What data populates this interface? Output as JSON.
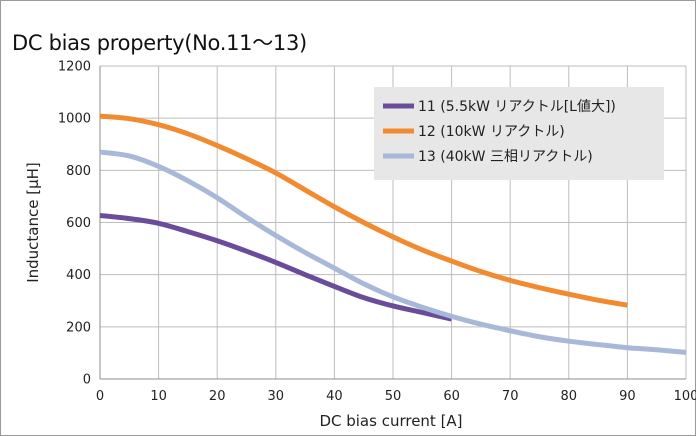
{
  "chart_data": {
    "type": "line",
    "title": "DC bias property(No.11～13)",
    "xlabel": "DC bias current [A]",
    "ylabel": "Inductance [μH]",
    "xlim": [
      0,
      100
    ],
    "ylim": [
      0,
      1200
    ],
    "xticks": [
      "0",
      "10",
      "20",
      "30",
      "40",
      "50",
      "60",
      "70",
      "80",
      "90",
      "100"
    ],
    "yticks": [
      "0",
      "200",
      "400",
      "600",
      "800",
      "1000",
      "1200"
    ],
    "grid": true,
    "legend_position": "top-right",
    "series": [
      {
        "name": "11 (5.5kW リアクトル[L値大])",
        "color": "#6b4c9a",
        "x": [
          0,
          5,
          10,
          15,
          20,
          25,
          30,
          35,
          40,
          45,
          50,
          55,
          60
        ],
        "y": [
          627,
          615,
          597,
          565,
          530,
          490,
          447,
          400,
          355,
          312,
          280,
          255,
          230
        ]
      },
      {
        "name": "12 (10kW リアクトル)",
        "color": "#f28a30",
        "x": [
          0,
          5,
          10,
          15,
          20,
          25,
          30,
          35,
          40,
          45,
          50,
          55,
          60,
          65,
          70,
          75,
          80,
          85,
          90
        ],
        "y": [
          1008,
          998,
          975,
          940,
          895,
          845,
          790,
          725,
          660,
          600,
          545,
          495,
          452,
          412,
          378,
          350,
          325,
          302,
          283
        ]
      },
      {
        "name": "13 (40kW 三相リアクトル)",
        "color": "#a7b8d9",
        "x": [
          0,
          5,
          10,
          15,
          20,
          25,
          30,
          35,
          40,
          45,
          50,
          55,
          60,
          65,
          70,
          75,
          80,
          85,
          90,
          95,
          100
        ],
        "y": [
          870,
          855,
          815,
          760,
          695,
          620,
          550,
          485,
          425,
          365,
          315,
          275,
          240,
          210,
          185,
          162,
          145,
          132,
          120,
          112,
          102
        ]
      }
    ]
  }
}
